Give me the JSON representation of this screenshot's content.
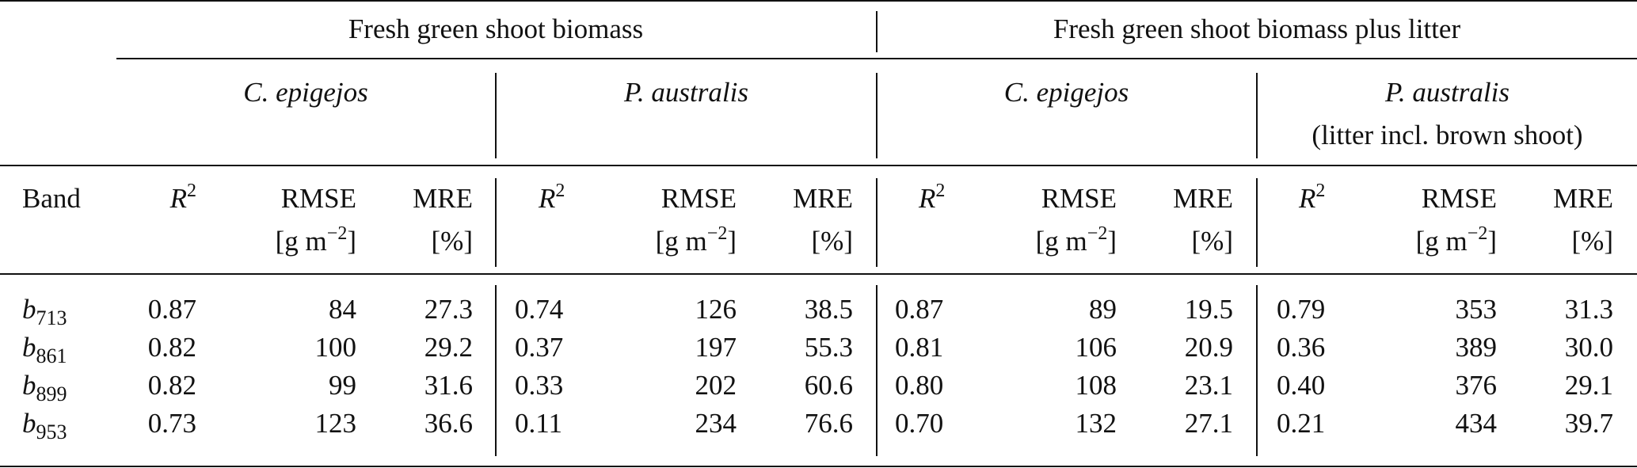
{
  "groups": [
    {
      "label": "Fresh green shoot biomass"
    },
    {
      "label": "Fresh green shoot biomass plus litter"
    }
  ],
  "species": [
    {
      "name": "C. epigejos",
      "note": ""
    },
    {
      "name": "P. australis",
      "note": ""
    },
    {
      "name": "C. epigejos",
      "note": ""
    },
    {
      "name": "P. australis",
      "note": "(litter incl. brown shoot)"
    }
  ],
  "headers": {
    "band": "Band",
    "r2_base": "R",
    "r2_exp": "2",
    "rmse": "RMSE",
    "rmse_unit_base": "[g m",
    "rmse_unit_exp": "−2",
    "rmse_unit_close": "]",
    "mre": "MRE",
    "mre_unit": "[%]"
  },
  "rows": [
    {
      "band_base": "b",
      "band_sub": "713",
      "values": [
        [
          "0.87",
          "84",
          "27.3"
        ],
        [
          "0.74",
          "126",
          "38.5"
        ],
        [
          "0.87",
          "89",
          "19.5"
        ],
        [
          "0.79",
          "353",
          "31.3"
        ]
      ]
    },
    {
      "band_base": "b",
      "band_sub": "861",
      "values": [
        [
          "0.82",
          "100",
          "29.2"
        ],
        [
          "0.37",
          "197",
          "55.3"
        ],
        [
          "0.81",
          "106",
          "20.9"
        ],
        [
          "0.36",
          "389",
          "30.0"
        ]
      ]
    },
    {
      "band_base": "b",
      "band_sub": "899",
      "values": [
        [
          "0.82",
          "99",
          "31.6"
        ],
        [
          "0.33",
          "202",
          "60.6"
        ],
        [
          "0.80",
          "108",
          "23.1"
        ],
        [
          "0.40",
          "376",
          "29.1"
        ]
      ]
    },
    {
      "band_base": "b",
      "band_sub": "953",
      "values": [
        [
          "0.73",
          "123",
          "36.6"
        ],
        [
          "0.11",
          "234",
          "76.6"
        ],
        [
          "0.70",
          "132",
          "27.1"
        ],
        [
          "0.21",
          "434",
          "39.7"
        ]
      ]
    }
  ]
}
